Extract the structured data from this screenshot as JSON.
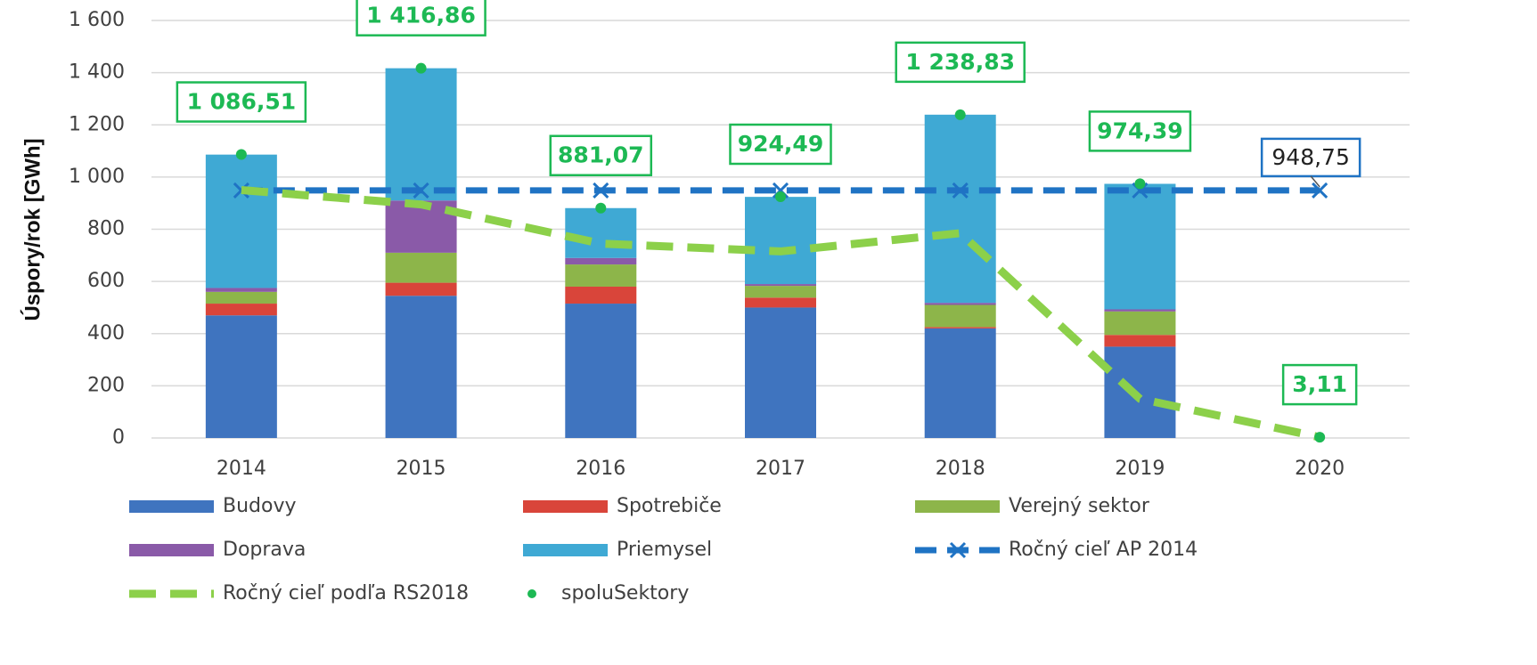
{
  "chart_data": {
    "type": "bar",
    "y_label": "Úspory/rok [GWh]",
    "categories": [
      "2014",
      "2015",
      "2016",
      "2017",
      "2018",
      "2019",
      "2020"
    ],
    "ylim": [
      0,
      1600
    ],
    "yticks": [
      0,
      200,
      400,
      600,
      800,
      {
        "value": 1000,
        "label": "1 000"
      },
      {
        "value": 1200,
        "label": "1 200"
      },
      {
        "value": 1400,
        "label": "1 400"
      },
      {
        "value": 1600,
        "label": "1 600"
      }
    ],
    "grid": true,
    "legend": "bottom",
    "series": [
      {
        "name": "Budovy",
        "type": "bar",
        "color": "#3f74bf",
        "values": [
          470,
          545,
          515,
          500,
          420,
          350,
          null
        ]
      },
      {
        "name": "Spotrebiče",
        "type": "bar",
        "color": "#d9453a",
        "values": [
          45,
          50,
          65,
          38,
          5,
          45,
          null
        ]
      },
      {
        "name": "Verejný sektor",
        "type": "bar",
        "color": "#8db54a",
        "values": [
          45,
          115,
          85,
          45,
          85,
          90,
          null
        ]
      },
      {
        "name": "Doprava",
        "type": "bar",
        "color": "#8a5aa8",
        "values": [
          15,
          200,
          25,
          7,
          8,
          8,
          null
        ]
      },
      {
        "name": "Priemysel",
        "type": "bar",
        "color": "#3fa9d4",
        "values": [
          511,
          507,
          191,
          334,
          721,
          481,
          null
        ]
      },
      {
        "name": "Ročný cieľ AP 2014",
        "type": "line",
        "marker": "x",
        "color": "#1f73c4",
        "values": [
          948.75,
          948.75,
          948.75,
          948.75,
          948.75,
          948.75,
          948.75
        ],
        "value_labels": [
          null,
          null,
          null,
          null,
          null,
          null,
          "948,75"
        ]
      },
      {
        "name": "Ročný cieľ podľa RS2018",
        "type": "line",
        "color": "#8cd04a",
        "values": [
          950,
          895,
          745,
          715,
          785,
          150,
          3.11
        ]
      },
      {
        "name": "spoluSektory",
        "type": "scatter",
        "color": "#1db954",
        "values": [
          1086.51,
          1416.86,
          881.07,
          924.49,
          1238.83,
          974.39,
          3.11
        ],
        "value_labels": [
          "1 086,51",
          "1 416,86",
          "881,07",
          "924,49",
          "1 238,83",
          "974,39",
          "3,11"
        ]
      }
    ]
  }
}
